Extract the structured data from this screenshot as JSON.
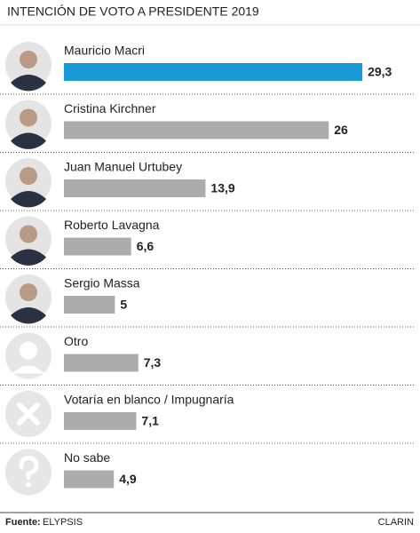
{
  "chart_data": {
    "type": "bar",
    "title": "INTENCIÓN DE VOTO A PRESIDENTE 2019",
    "categories": [
      "Mauricio Macri",
      "Cristina Kirchner",
      "Juan Manuel Urtubey",
      "Roberto Lavagna",
      "Sergio Massa",
      "Otro",
      "Votaría en blanco / Impugnaría",
      "No sabe"
    ],
    "values": [
      29.3,
      26,
      13.9,
      6.6,
      5,
      7.3,
      7.1,
      4.9
    ],
    "value_labels": [
      "29,3",
      "26",
      "13,9",
      "6,6",
      "5",
      "7,3",
      "7,1",
      "4,9"
    ],
    "colors": [
      "#1b9ad8",
      "#acacac",
      "#acacac",
      "#acacac",
      "#acacac",
      "#acacac",
      "#acacac",
      "#acacac"
    ],
    "source_label": "Fuente:",
    "source": "ELYPSIS",
    "credit": "CLARIN"
  }
}
